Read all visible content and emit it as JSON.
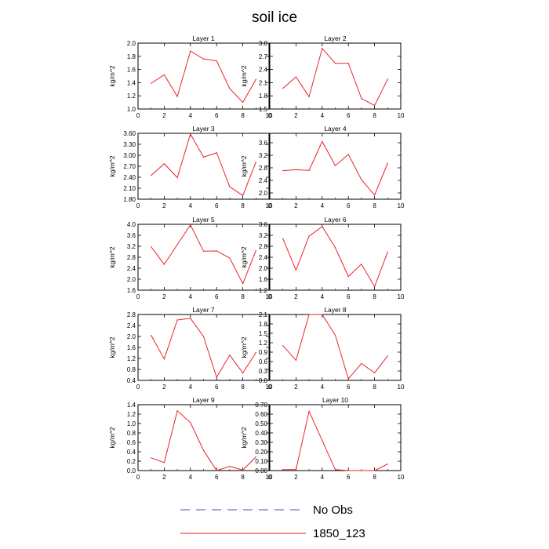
{
  "figure": {
    "title": "soil ice"
  },
  "legend": [
    {
      "label": "No Obs",
      "color": "#5b4fa8",
      "style": "dashed"
    },
    {
      "label": "1850_123",
      "color": "#e8232a",
      "style": "solid"
    }
  ],
  "chart_data": [
    {
      "type": "line",
      "title": "Layer 1",
      "ylabel": "kg/m^2",
      "xlim": [
        0,
        10
      ],
      "ylim": [
        1.0,
        2.0
      ],
      "xticks": [
        "0",
        "2",
        "4",
        "6",
        "8",
        "10"
      ],
      "yticks": [
        "1.0",
        "1.2",
        "1.4",
        "1.6",
        "1.8",
        "2.0"
      ],
      "x": [
        1,
        2,
        3,
        4,
        5,
        6,
        7,
        8,
        9
      ],
      "series": [
        {
          "name": "1850_123",
          "color": "#e8232a",
          "values": [
            1.39,
            1.52,
            1.19,
            1.88,
            1.76,
            1.73,
            1.31,
            1.1,
            1.45
          ]
        }
      ]
    },
    {
      "type": "line",
      "title": "Layer 2",
      "ylabel": "kg/m^2",
      "xlim": [
        0,
        10
      ],
      "ylim": [
        1.5,
        3.0
      ],
      "xticks": [
        "0",
        "2",
        "4",
        "6",
        "8",
        "10"
      ],
      "yticks": [
        "1.5",
        "1.8",
        "2.1",
        "2.4",
        "2.7",
        "3.0"
      ],
      "x": [
        1,
        2,
        3,
        4,
        5,
        6,
        7,
        8,
        9
      ],
      "series": [
        {
          "name": "1850_123",
          "color": "#e8232a",
          "values": [
            1.97,
            2.23,
            1.78,
            2.88,
            2.54,
            2.54,
            1.74,
            1.58,
            2.18
          ]
        }
      ]
    },
    {
      "type": "line",
      "title": "Layer 3",
      "ylabel": "kg/m^2",
      "xlim": [
        0,
        10
      ],
      "ylim": [
        1.8,
        3.6
      ],
      "xticks": [
        "0",
        "2",
        "4",
        "6",
        "8",
        "10"
      ],
      "yticks": [
        "1.80",
        "2.10",
        "2.40",
        "2.70",
        "3.00",
        "3.30",
        "3.60"
      ],
      "x": [
        1,
        2,
        3,
        4,
        5,
        6,
        7,
        8,
        9
      ],
      "series": [
        {
          "name": "1850_123",
          "color": "#e8232a",
          "values": [
            2.45,
            2.77,
            2.39,
            3.58,
            2.95,
            3.07,
            2.14,
            1.9,
            2.81
          ]
        }
      ]
    },
    {
      "type": "line",
      "title": "Layer 4",
      "ylabel": "kg/m^2",
      "xlim": [
        0,
        10
      ],
      "ylim": [
        1.8,
        3.9
      ],
      "xticks": [
        "0",
        "2",
        "4",
        "6",
        "8",
        "10"
      ],
      "yticks": [
        "2.0",
        "2.4",
        "2.8",
        "3.2",
        "3.6"
      ],
      "x": [
        1,
        2,
        3,
        4,
        5,
        6,
        7,
        8,
        9
      ],
      "series": [
        {
          "name": "1850_123",
          "color": "#e8232a",
          "values": [
            2.71,
            2.74,
            2.72,
            3.64,
            2.87,
            3.23,
            2.42,
            1.93,
            2.95
          ]
        }
      ]
    },
    {
      "type": "line",
      "title": "Layer 5",
      "ylabel": "kg/m^2",
      "xlim": [
        0,
        10
      ],
      "ylim": [
        1.6,
        4.0
      ],
      "xticks": [
        "0",
        "2",
        "4",
        "6",
        "8",
        "10"
      ],
      "yticks": [
        "1.6",
        "2.0",
        "2.4",
        "2.8",
        "3.2",
        "3.6",
        "4.0"
      ],
      "x": [
        1,
        2,
        3,
        4,
        5,
        6,
        7,
        8,
        9
      ],
      "series": [
        {
          "name": "1850_123",
          "color": "#e8232a",
          "values": [
            3.18,
            2.54,
            3.26,
            3.98,
            3.02,
            3.03,
            2.77,
            1.84,
            3.04
          ]
        }
      ]
    },
    {
      "type": "line",
      "title": "Layer 6",
      "ylabel": "kg/m^2",
      "xlim": [
        0,
        10
      ],
      "ylim": [
        1.2,
        3.6
      ],
      "xticks": [
        "0",
        "2",
        "4",
        "6",
        "8",
        "10"
      ],
      "yticks": [
        "1.2",
        "1.6",
        "2.0",
        "2.4",
        "2.8",
        "3.2",
        "3.6"
      ],
      "x": [
        1,
        2,
        3,
        4,
        5,
        6,
        7,
        8,
        9
      ],
      "series": [
        {
          "name": "1850_123",
          "color": "#e8232a",
          "values": [
            3.08,
            1.93,
            3.17,
            3.52,
            2.75,
            1.7,
            2.15,
            1.33,
            2.59
          ]
        }
      ]
    },
    {
      "type": "line",
      "title": "Layer 7",
      "ylabel": "kg/m^2",
      "xlim": [
        0,
        10
      ],
      "ylim": [
        0.4,
        2.8
      ],
      "xticks": [
        "0",
        "2",
        "4",
        "6",
        "8",
        "10"
      ],
      "yticks": [
        "0.4",
        "0.8",
        "1.2",
        "1.6",
        "2.0",
        "2.4",
        "2.8"
      ],
      "x": [
        1,
        2,
        3,
        4,
        5,
        6,
        7,
        8,
        9
      ],
      "series": [
        {
          "name": "1850_123",
          "color": "#e8232a",
          "values": [
            2.04,
            1.18,
            2.6,
            2.66,
            2.0,
            0.51,
            1.32,
            0.67,
            1.41
          ]
        }
      ]
    },
    {
      "type": "line",
      "title": "Layer 8",
      "ylabel": "kg/m^2",
      "xlim": [
        0,
        10
      ],
      "ylim": [
        0.0,
        2.1
      ],
      "xticks": [
        "0",
        "2",
        "4",
        "6",
        "8",
        "10"
      ],
      "yticks": [
        "0.0",
        "0.3",
        "0.6",
        "0.9",
        "1.2",
        "1.5",
        "1.8",
        "2.1"
      ],
      "x": [
        1,
        2,
        3,
        4,
        5,
        6,
        7,
        8,
        9
      ],
      "series": [
        {
          "name": "1850_123",
          "color": "#e8232a",
          "values": [
            1.11,
            0.64,
            2.1,
            2.1,
            1.44,
            0.05,
            0.54,
            0.24,
            0.78
          ]
        }
      ]
    },
    {
      "type": "line",
      "title": "Layer 9",
      "ylabel": "kg/m^2",
      "xlim": [
        0,
        10
      ],
      "ylim": [
        0.0,
        1.4
      ],
      "xticks": [
        "0",
        "2",
        "4",
        "6",
        "8",
        "10"
      ],
      "yticks": [
        "0.0",
        "0.2",
        "0.4",
        "0.6",
        "0.8",
        "1.0",
        "1.2",
        "1.4"
      ],
      "x": [
        1,
        2,
        3,
        4,
        5,
        6,
        7,
        8,
        9
      ],
      "series": [
        {
          "name": "1850_123",
          "color": "#e8232a",
          "values": [
            0.27,
            0.17,
            1.27,
            1.02,
            0.43,
            0.0,
            0.09,
            0.01,
            0.29
          ]
        }
      ]
    },
    {
      "type": "line",
      "title": "Layer 10",
      "ylabel": "kg/m^2",
      "xlim": [
        0,
        10
      ],
      "ylim": [
        0.0,
        0.7
      ],
      "xticks": [
        "0",
        "2",
        "4",
        "6",
        "8",
        "10"
      ],
      "yticks": [
        "0.00",
        "0.10",
        "0.20",
        "0.30",
        "0.40",
        "0.50",
        "0.60",
        "0.70"
      ],
      "x": [
        1,
        2,
        3,
        4,
        5,
        6,
        7,
        8,
        9
      ],
      "series": [
        {
          "name": "1850_123",
          "color": "#e8232a",
          "values": [
            0.01,
            0.01,
            0.63,
            0.32,
            0.01,
            0.0,
            0.0,
            0.0,
            0.07
          ]
        }
      ]
    }
  ]
}
